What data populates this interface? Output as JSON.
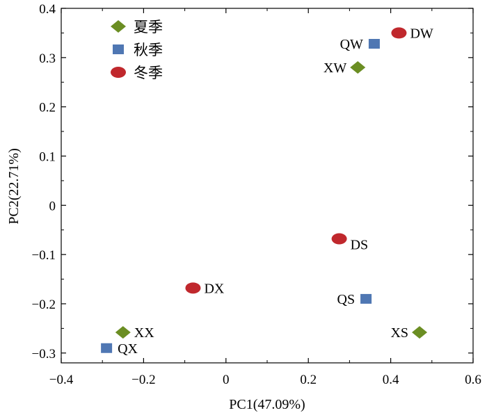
{
  "chart_data": {
    "type": "scatter",
    "xlabel": "PC1(47.09%)",
    "ylabel": "PC2(22.71%)",
    "xlim": [
      -0.4,
      0.6
    ],
    "ylim": [
      -0.32,
      0.4
    ],
    "xticks": [
      -0.4,
      -0.2,
      0,
      0.2,
      0.4,
      0.6
    ],
    "yticks": [
      -0.3,
      -0.2,
      -0.1,
      0,
      0.1,
      0.2,
      0.3,
      0.4
    ],
    "xtick_labels": [
      "−0.4",
      "−0.2",
      "0",
      "0.2",
      "0.4",
      "0.6"
    ],
    "ytick_labels": [
      "−0.3",
      "−0.2",
      "−0.1",
      "0",
      "0.1",
      "0.2",
      "0.3",
      "0.4"
    ],
    "legend_position": "top-left",
    "series": [
      {
        "name": "夏季",
        "marker": "diamond",
        "color": "#6b8e23",
        "points": [
          {
            "label": "XW",
            "x": 0.32,
            "y": 0.28
          },
          {
            "label": "XX",
            "x": -0.25,
            "y": -0.258
          },
          {
            "label": "XS",
            "x": 0.47,
            "y": -0.258
          }
        ]
      },
      {
        "name": "秋季",
        "marker": "square",
        "color": "#4f77b3",
        "points": [
          {
            "label": "QW",
            "x": 0.36,
            "y": 0.328
          },
          {
            "label": "QX",
            "x": -0.29,
            "y": -0.29
          },
          {
            "label": "QS",
            "x": 0.34,
            "y": -0.19
          }
        ]
      },
      {
        "name": "冬季",
        "marker": "ellipse",
        "color": "#c0282d",
        "points": [
          {
            "label": "DW",
            "x": 0.42,
            "y": 0.35
          },
          {
            "label": "DX",
            "x": -0.08,
            "y": -0.168
          },
          {
            "label": "DS",
            "x": 0.275,
            "y": -0.068
          }
        ]
      }
    ]
  }
}
